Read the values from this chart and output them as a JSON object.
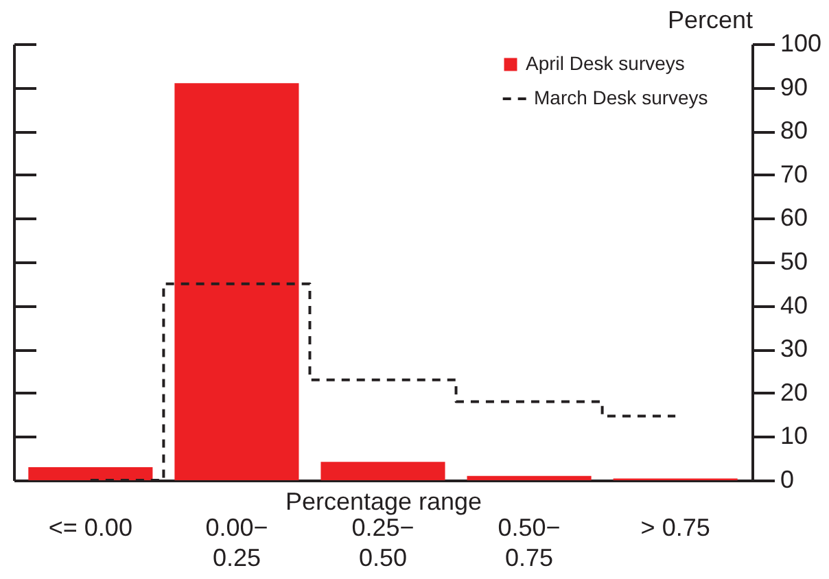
{
  "chart_data": {
    "type": "bar",
    "xlabel": "Percentage range",
    "ylabel": "Percent",
    "categories": [
      "<= 0.00",
      "0.00−\n0.25",
      "0.25−\n0.50",
      "0.50−\n0.75",
      "> 0.75"
    ],
    "series": [
      {
        "name": "April Desk surveys",
        "color": "#ed2024",
        "values": [
          3,
          91,
          4.2,
          1,
          0.4
        ]
      },
      {
        "name": "March Desk surveys",
        "color": "#231f20",
        "type": "step",
        "line_style": "dashed",
        "values": [
          0,
          45,
          23,
          18,
          14.7
        ]
      }
    ],
    "ylim": [
      0,
      100
    ],
    "yticks": [
      0,
      10,
      20,
      30,
      40,
      50,
      60,
      70,
      80,
      90,
      100
    ],
    "grid": false,
    "legend": "top right"
  }
}
